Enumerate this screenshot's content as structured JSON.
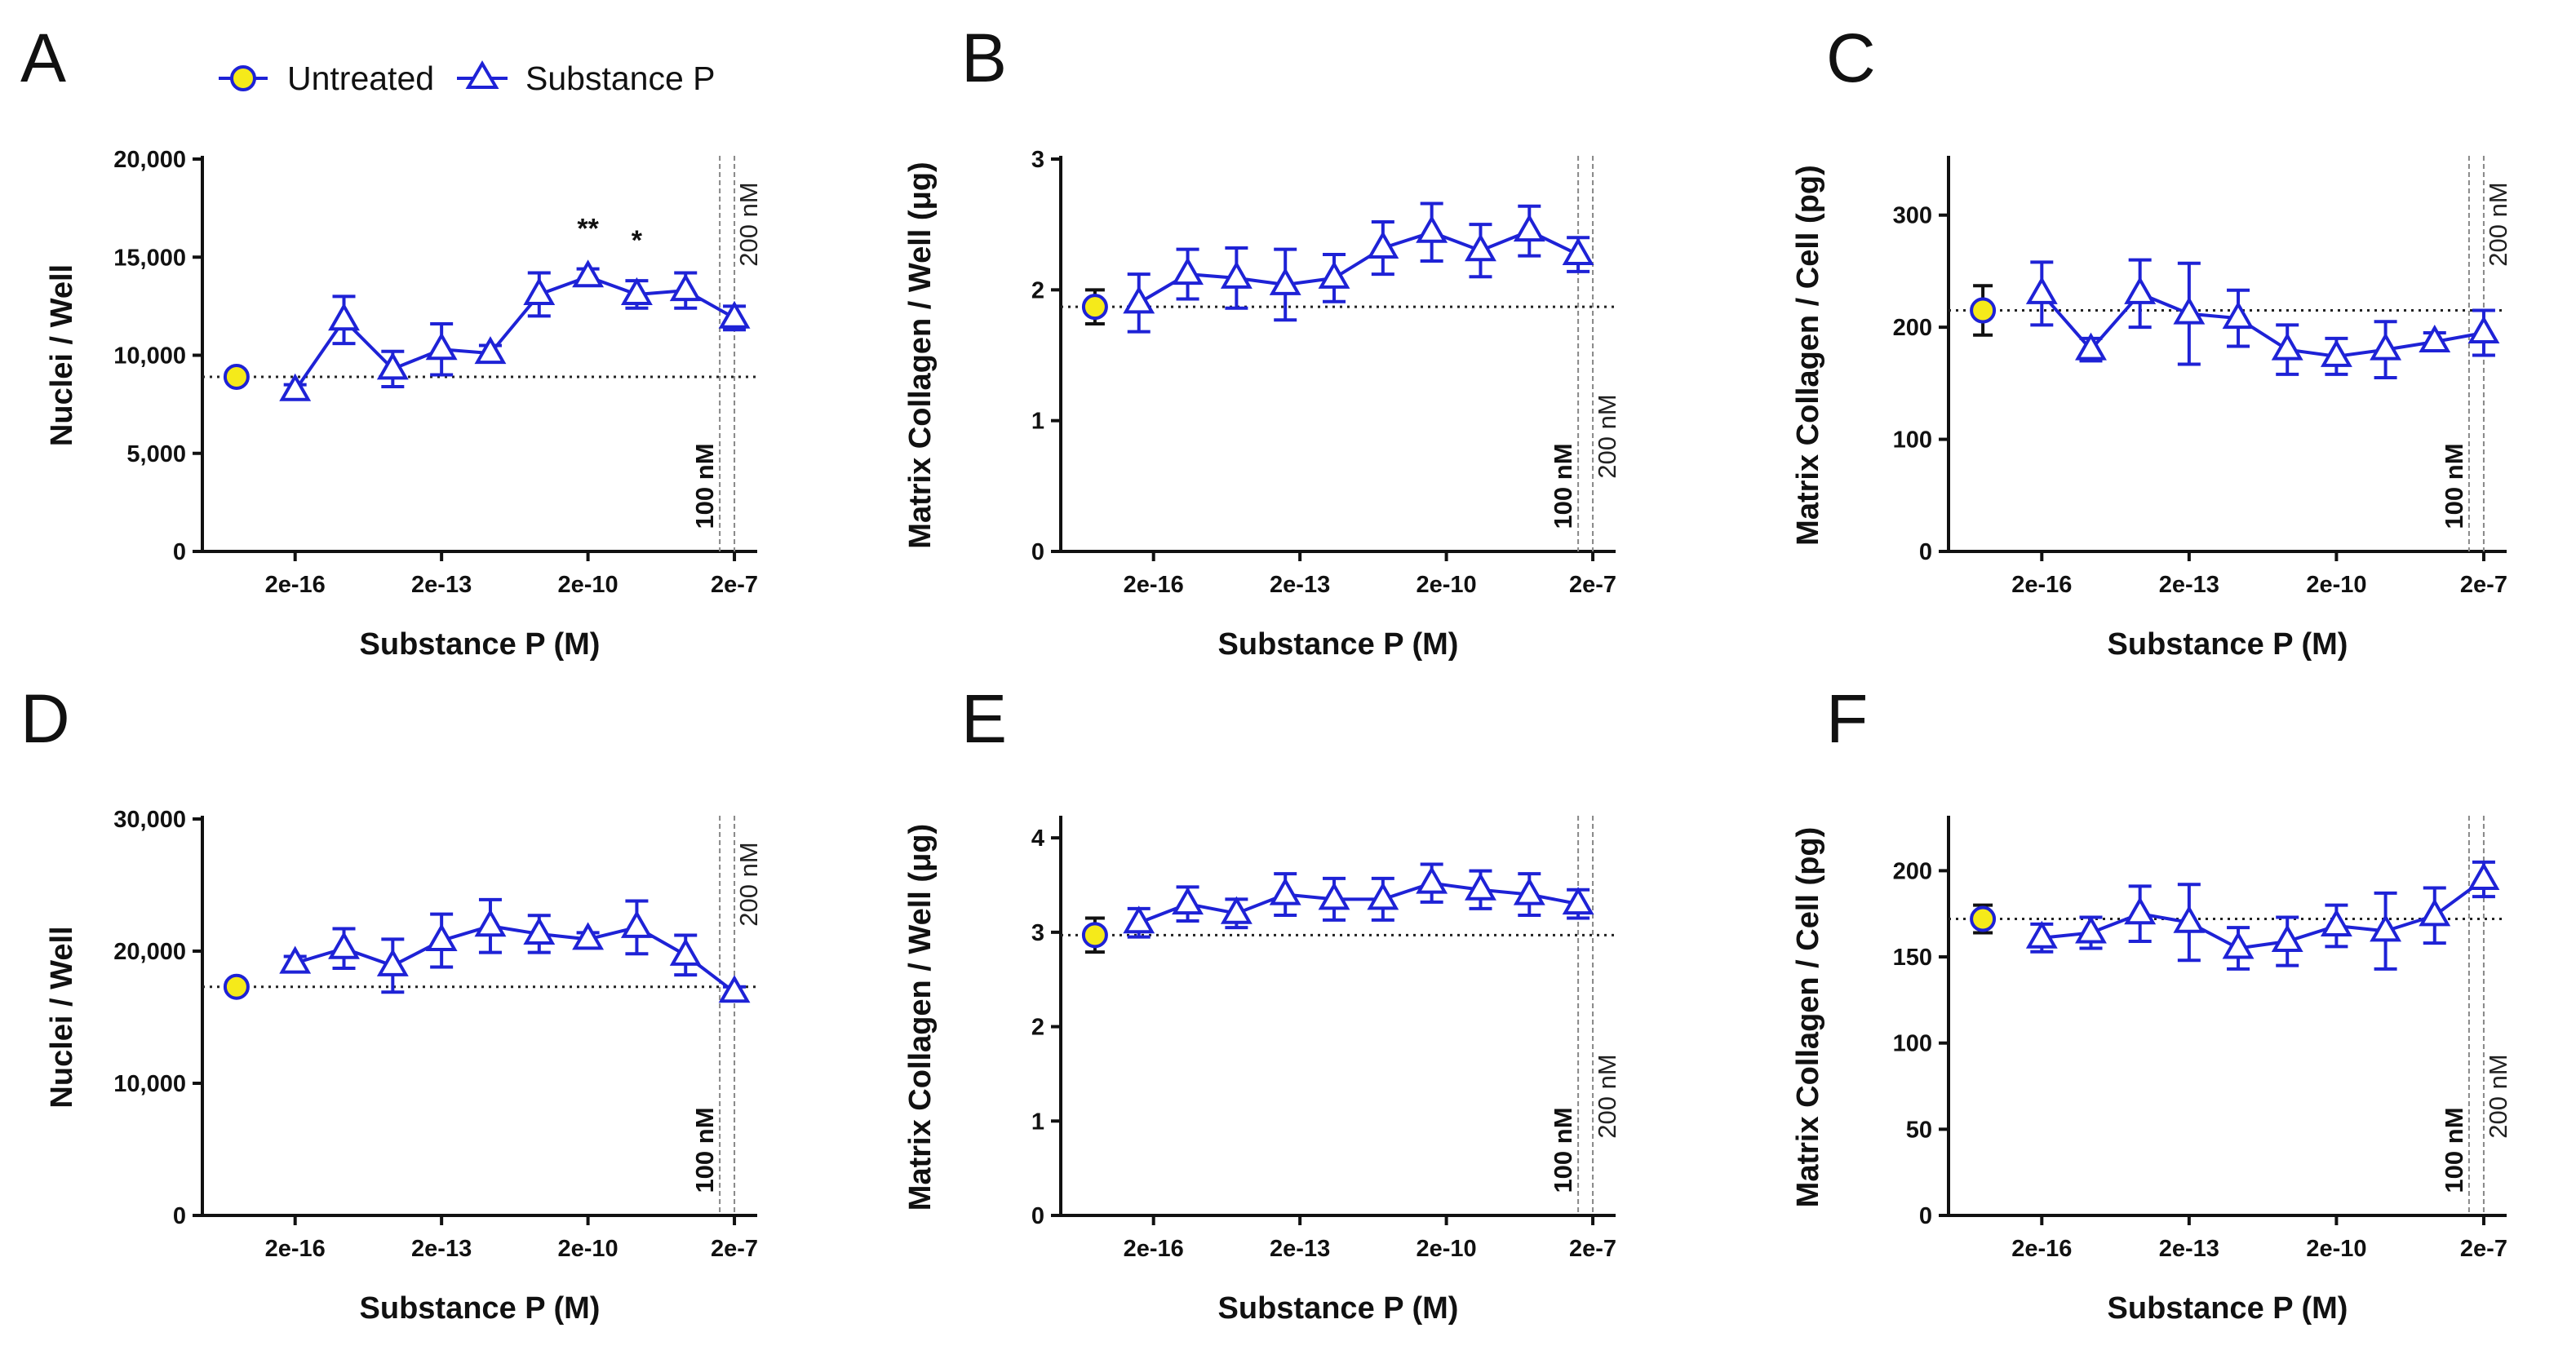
{
  "legend": {
    "untreated_label": "Untreated",
    "substance_label": "Substance P"
  },
  "colors": {
    "series": "#1e22d6",
    "untreated_fill": "#f5ea1a",
    "untreated_stroke": "#1e22d6",
    "axis": "#111111",
    "reference": "#888888",
    "baseline": "#222222"
  },
  "chart_data": [
    {
      "type": "line",
      "panel": "A",
      "xlabel": "Substance P (M)",
      "ylabel": "Nuclei / Well",
      "ylim": [
        0,
        20000
      ],
      "yticks": [
        0,
        5000,
        10000,
        15000,
        20000
      ],
      "ytick_labels": [
        "0",
        "5,000",
        "10,000",
        "15,000",
        "20,000"
      ],
      "x_exponents": [
        -16.7,
        -7.0
      ],
      "xticks": [
        -16,
        -13,
        -10,
        -7
      ],
      "xtick_labels": [
        "2e-16",
        "2e-13",
        "2e-10",
        "2e-7"
      ],
      "untreated": {
        "x": -17.2,
        "y": 8900,
        "err": 300
      },
      "baseline": 8900,
      "series": [
        {
          "name": "Substance P",
          "x": [
            -16,
            -15,
            -14,
            -13,
            -12,
            -11,
            -10,
            -9,
            -8,
            -7
          ],
          "y": [
            8200,
            11800,
            9300,
            10300,
            10100,
            13100,
            14000,
            13100,
            13300,
            11900
          ],
          "err": [
            300,
            1200,
            900,
            1300,
            400,
            1100,
            400,
            700,
            900,
            600
          ]
        }
      ],
      "ref_lines": [
        {
          "x": -7.3,
          "label": "100 nM",
          "bold": true,
          "pos": "bottom"
        },
        {
          "x": -7.0,
          "label": "200 nM",
          "bold": false,
          "pos": "top"
        }
      ],
      "significance": [
        {
          "x": -10,
          "label": "**"
        },
        {
          "x": -9,
          "label": "*"
        }
      ]
    },
    {
      "type": "line",
      "panel": "B",
      "xlabel": "Substance P (M)",
      "ylabel": "Matrix Collagen / Well (μg)",
      "ylim": [
        0,
        3
      ],
      "yticks": [
        0,
        1,
        2,
        3
      ],
      "ytick_labels": [
        "0",
        "1",
        "2",
        "3"
      ],
      "x_exponents": [
        -16.7,
        -7.0
      ],
      "xticks": [
        -16,
        -13,
        -10,
        -7
      ],
      "xtick_labels": [
        "2e-16",
        "2e-13",
        "2e-10",
        "2e-7"
      ],
      "untreated": {
        "x": -17.2,
        "y": 1.87,
        "err": 0.13
      },
      "baseline": 1.87,
      "series": [
        {
          "name": "Substance P",
          "x": [
            -16.3,
            -15.3,
            -14.3,
            -13.3,
            -12.3,
            -11.3,
            -10.3,
            -9.3,
            -8.3,
            -7.3
          ],
          "y": [
            1.9,
            2.12,
            2.09,
            2.04,
            2.09,
            2.32,
            2.44,
            2.3,
            2.45,
            2.27
          ],
          "err": [
            0.22,
            0.19,
            0.23,
            0.27,
            0.18,
            0.2,
            0.22,
            0.2,
            0.19,
            0.13
          ]
        }
      ],
      "ref_lines": [
        {
          "x": -7.3,
          "label": "100 nM",
          "bold": true,
          "pos": "bottom"
        },
        {
          "x": -7.0,
          "label": "200 nM",
          "bold": false,
          "pos": "middle"
        }
      ],
      "significance": []
    },
    {
      "type": "line",
      "panel": "C",
      "xlabel": "Substance P (M)",
      "ylabel": "Matrix Collagen / Cell (pg)",
      "ylim": [
        0,
        350
      ],
      "yticks": [
        0,
        100,
        200,
        300
      ],
      "ytick_labels": [
        "0",
        "100",
        "200",
        "300"
      ],
      "x_exponents": [
        -16.7,
        -7.0
      ],
      "xticks": [
        -16,
        -13,
        -10,
        -7
      ],
      "xtick_labels": [
        "2e-16",
        "2e-13",
        "2e-10",
        "2e-7"
      ],
      "untreated": {
        "x": -17.2,
        "y": 215,
        "err": 22
      },
      "baseline": 215,
      "series": [
        {
          "name": "Substance P",
          "x": [
            -16,
            -15,
            -14,
            -13,
            -12,
            -11,
            -10,
            -9,
            -8,
            -7
          ],
          "y": [
            230,
            180,
            230,
            212,
            208,
            180,
            174,
            180,
            187,
            195
          ],
          "err": [
            28,
            10,
            30,
            45,
            25,
            22,
            16,
            25,
            8,
            20
          ]
        }
      ],
      "ref_lines": [
        {
          "x": -7.3,
          "label": "100 nM",
          "bold": true,
          "pos": "bottom"
        },
        {
          "x": -7.0,
          "label": "200 nM",
          "bold": false,
          "pos": "top"
        }
      ],
      "significance": []
    },
    {
      "type": "line",
      "panel": "D",
      "xlabel": "Substance P (M)",
      "ylabel": "Nuclei / Well",
      "ylim": [
        0,
        30000
      ],
      "yticks": [
        0,
        10000,
        20000,
        30000
      ],
      "ytick_labels": [
        "0",
        "10,000",
        "20,000",
        "30,000"
      ],
      "x_exponents": [
        -16.7,
        -7.0
      ],
      "xticks": [
        -16,
        -13,
        -10,
        -7
      ],
      "xtick_labels": [
        "2e-16",
        "2e-13",
        "2e-10",
        "2e-7"
      ],
      "untreated": {
        "x": -17.2,
        "y": 17300,
        "err": 400
      },
      "baseline": 17300,
      "series": [
        {
          "name": "Substance P",
          "x": [
            -16,
            -15,
            -14,
            -13,
            -12,
            -11,
            -10,
            -9,
            -8,
            -7
          ],
          "y": [
            19100,
            20200,
            18900,
            20800,
            21900,
            21300,
            20900,
            21800,
            19700,
            16900
          ],
          "err": [
            500,
            1500,
            2000,
            2000,
            2000,
            1400,
            500,
            2000,
            1500,
            400
          ]
        }
      ],
      "ref_lines": [
        {
          "x": -7.3,
          "label": "100 nM",
          "bold": true,
          "pos": "bottom"
        },
        {
          "x": -7.0,
          "label": "200 nM",
          "bold": false,
          "pos": "top"
        }
      ],
      "significance": []
    },
    {
      "type": "line",
      "panel": "E",
      "xlabel": "Substance P (M)",
      "ylabel": "Matrix Collagen / Well (μg)",
      "ylim": [
        0,
        4.2
      ],
      "yticks": [
        0,
        1,
        2,
        3,
        4
      ],
      "ytick_labels": [
        "0",
        "1",
        "2",
        "3",
        "4"
      ],
      "x_exponents": [
        -16.7,
        -7.0
      ],
      "xticks": [
        -16,
        -13,
        -10,
        -7
      ],
      "xtick_labels": [
        "2e-16",
        "2e-13",
        "2e-10",
        "2e-7"
      ],
      "untreated": {
        "x": -17.2,
        "y": 2.97,
        "err": 0.18
      },
      "baseline": 2.97,
      "series": [
        {
          "name": "Substance P",
          "x": [
            -16.3,
            -15.3,
            -14.3,
            -13.3,
            -12.3,
            -11.3,
            -10.3,
            -9.3,
            -8.3,
            -7.3
          ],
          "y": [
            3.1,
            3.3,
            3.2,
            3.4,
            3.35,
            3.35,
            3.52,
            3.45,
            3.4,
            3.3
          ],
          "err": [
            0.15,
            0.18,
            0.15,
            0.22,
            0.22,
            0.22,
            0.2,
            0.2,
            0.22,
            0.15
          ]
        }
      ],
      "ref_lines": [
        {
          "x": -7.3,
          "label": "100 nM",
          "bold": true,
          "pos": "bottom"
        },
        {
          "x": -7.0,
          "label": "200 nM",
          "bold": false,
          "pos": "middle"
        }
      ],
      "significance": []
    },
    {
      "type": "line",
      "panel": "F",
      "xlabel": "Substance P (M)",
      "ylabel": "Matrix Collagen / Cell (pg)",
      "ylim": [
        0,
        230
      ],
      "yticks": [
        0,
        50,
        100,
        150,
        200
      ],
      "ytick_labels": [
        "0",
        "50",
        "100",
        "150",
        "200"
      ],
      "x_exponents": [
        -16.7,
        -7.0
      ],
      "xticks": [
        -16,
        -13,
        -10,
        -7
      ],
      "xtick_labels": [
        "2e-16",
        "2e-13",
        "2e-10",
        "2e-7"
      ],
      "untreated": {
        "x": -17.2,
        "y": 172,
        "err": 8
      },
      "baseline": 172,
      "series": [
        {
          "name": "Substance P",
          "x": [
            -16,
            -15,
            -14,
            -13,
            -12,
            -11,
            -10,
            -9,
            -8,
            -7
          ],
          "y": [
            161,
            164,
            175,
            170,
            155,
            159,
            168,
            165,
            174,
            195
          ],
          "err": [
            8,
            9,
            16,
            22,
            12,
            14,
            12,
            22,
            16,
            10
          ]
        }
      ],
      "ref_lines": [
        {
          "x": -7.3,
          "label": "100 nM",
          "bold": true,
          "pos": "bottom"
        },
        {
          "x": -7.0,
          "label": "200 nM",
          "bold": false,
          "pos": "middle"
        }
      ],
      "significance": []
    }
  ]
}
